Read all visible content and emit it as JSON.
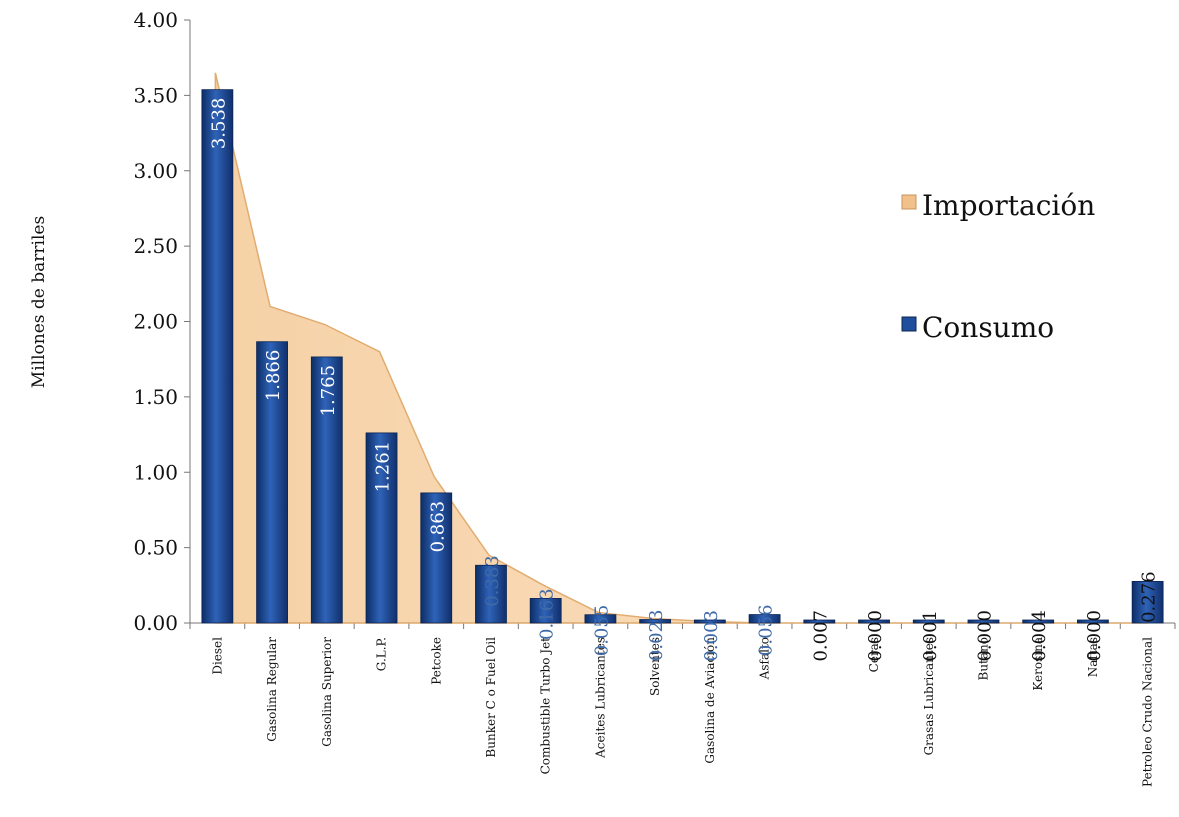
{
  "chart_data": {
    "type": "bar",
    "ylabel": "Millones de barriles",
    "xlabel": "",
    "ylim": [
      0,
      4
    ],
    "yticks": [
      "0.00",
      "0.50",
      "1.00",
      "1.50",
      "2.00",
      "2.50",
      "3.00",
      "3.50",
      "4.00"
    ],
    "categories": [
      "Diesel",
      "Gasolina Regular",
      "Gasolina Superior",
      "G.L.P.",
      "Petcoke",
      "Bunker C o Fuel Oil",
      "Combustible Turbo Jet",
      "Aceites Lubricantes",
      "Solventes",
      "Gasolina de Aviación",
      "Asfalto",
      "",
      "Ceras",
      "Grasas Lubricantes",
      "Butano",
      "Kerosina",
      "Naftas",
      "Petroleo Crudo Nacional"
    ],
    "series": [
      {
        "name": "Importación",
        "style": "area",
        "color": "#f2c08a",
        "values": [
          3.65,
          2.1,
          1.98,
          1.8,
          0.97,
          0.45,
          0.25,
          0.07,
          0.03,
          0.01,
          0.0,
          0.0,
          0.0,
          0.0,
          0.0,
          0.0,
          0.0,
          0.0
        ]
      },
      {
        "name": "Consumo",
        "style": "bar",
        "color": "#1f4e9c",
        "values": [
          3.538,
          1.866,
          1.765,
          1.261,
          0.863,
          0.383,
          0.163,
          0.055,
          0.023,
          0.003,
          0.056,
          0.007,
          0.0,
          0.001,
          0.0,
          0.004,
          0.0,
          0.276
        ],
        "labels": [
          "3.538",
          "1.866",
          "1.765",
          "1.261",
          "0.863",
          "0.383",
          "0.163",
          "0.055",
          "0.023",
          "0.003",
          "0.056",
          "0.007",
          "0.000",
          "0.001",
          "0.000",
          "0.004",
          "0.000",
          "0.276"
        ]
      }
    ],
    "legend": {
      "position": "right",
      "items": [
        {
          "name": "Importación",
          "color": "#f2c08a"
        },
        {
          "name": "Consumo",
          "color": "#1f4e9c"
        }
      ]
    },
    "grid": false
  }
}
